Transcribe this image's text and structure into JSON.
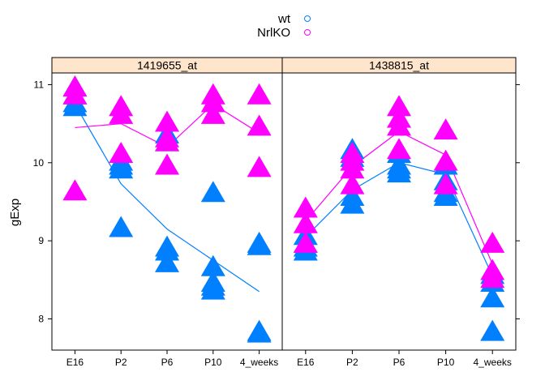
{
  "chart_data": {
    "type": "scatter",
    "panels": [
      "1419655_at",
      "1438815_at"
    ],
    "categories": [
      "E16",
      "P2",
      "P6",
      "P10",
      "4_weeks"
    ],
    "ylabel": "gExp",
    "xlabel": "",
    "ylim": [
      7.6,
      11.15
    ],
    "yticks": [
      8,
      9,
      10,
      11
    ],
    "legend": {
      "placement": "top",
      "entries": [
        {
          "name": "wt",
          "color": "#0080ff"
        },
        {
          "name": "NrlKO",
          "color": "#ff00ff"
        }
      ]
    },
    "series": [
      {
        "name": "wt",
        "color": "#0080ff",
        "points": {
          "1419655_at": {
            "E16": [
              10.95,
              10.85,
              10.75,
              10.7
            ],
            "P2": [
              10.0,
              9.95,
              9.9,
              9.15
            ],
            "P6": [
              10.35,
              10.25,
              8.9,
              8.85,
              8.7
            ],
            "P10": [
              9.6,
              8.65,
              8.45,
              8.4,
              8.35
            ],
            "4_weeks": [
              8.95,
              8.92,
              7.82,
              7.8
            ]
          },
          "1438815_at": {
            "E16": [
              9.05,
              8.95,
              8.9,
              8.85
            ],
            "P2": [
              10.15,
              10.05,
              9.55,
              9.45
            ],
            "P6": [
              10.1,
              9.95,
              9.9,
              9.85
            ],
            "P10": [
              9.95,
              9.75,
              9.6,
              9.55
            ],
            "4_weeks": [
              8.55,
              8.45,
              8.25,
              7.82
            ]
          }
        },
        "line": {
          "1419655_at": [
            10.75,
            9.73,
            9.15,
            8.75,
            8.35
          ],
          "1438815_at": [
            9.05,
            9.65,
            10.0,
            9.85,
            8.55
          ]
        }
      },
      {
        "name": "NrlKO",
        "color": "#ff00ff",
        "points": {
          "1419655_at": {
            "E16": [
              10.95,
              10.85,
              9.62
            ],
            "P2": [
              10.7,
              10.6,
              10.1
            ],
            "P6": [
              10.5,
              10.3,
              10.25,
              9.95
            ],
            "P10": [
              10.85,
              10.75,
              10.6
            ],
            "4_weeks": [
              10.85,
              10.45,
              9.92
            ]
          },
          "1438815_at": {
            "E16": [
              9.4,
              9.2,
              8.95
            ],
            "P2": [
              10.1,
              10.0,
              9.9,
              9.7
            ],
            "P6": [
              10.7,
              10.55,
              10.45,
              10.15
            ],
            "P10": [
              10.4,
              10.0,
              9.7
            ],
            "4_weeks": [
              8.95,
              8.6,
              8.5
            ]
          }
        },
        "line": {
          "1419655_at": [
            10.45,
            10.5,
            10.2,
            10.75,
            10.38
          ],
          "1438815_at": [
            9.25,
            9.95,
            10.4,
            10.1,
            8.7
          ]
        }
      }
    ]
  }
}
